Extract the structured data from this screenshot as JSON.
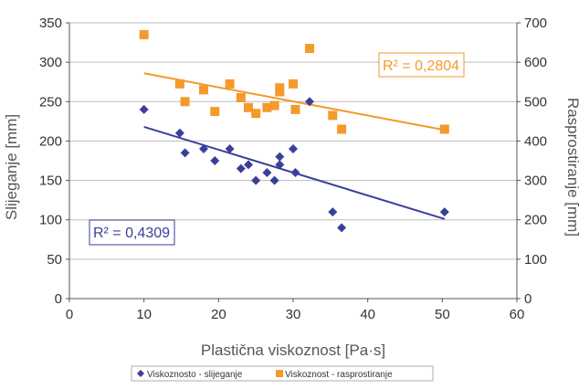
{
  "chart_data": {
    "type": "scatter",
    "xlabel": "Plastična viskoznost [Pa·s]",
    "ylabel": "Slijeganje [mm]",
    "y2label": "Rasprostiranje [mm]",
    "xlim": [
      0,
      60
    ],
    "ylim": [
      0,
      350
    ],
    "y2lim": [
      0,
      700
    ],
    "x_ticks": [
      0,
      10,
      20,
      30,
      40,
      50,
      60
    ],
    "y_ticks": [
      0,
      50,
      100,
      150,
      200,
      250,
      300,
      350
    ],
    "y2_ticks": [
      0,
      100,
      200,
      300,
      400,
      500,
      600,
      700
    ],
    "grid": "horizontal",
    "legend_position": "bottom",
    "series": [
      {
        "name": "Viskoznosto - slijeganje",
        "axis": "left",
        "marker": "diamond",
        "color": "#3a3f9a",
        "points": [
          [
            10,
            240
          ],
          [
            14.8,
            210
          ],
          [
            15.5,
            185
          ],
          [
            18,
            190
          ],
          [
            19.5,
            175
          ],
          [
            21.5,
            190
          ],
          [
            23,
            165
          ],
          [
            24,
            170
          ],
          [
            25,
            150
          ],
          [
            26.5,
            160
          ],
          [
            27.5,
            150
          ],
          [
            28.2,
            170
          ],
          [
            28.2,
            180
          ],
          [
            30,
            190
          ],
          [
            30.3,
            160
          ],
          [
            32.2,
            250
          ],
          [
            35.3,
            110
          ],
          [
            36.5,
            90
          ],
          [
            50.3,
            110
          ]
        ],
        "trendline": {
          "x": [
            10,
            50.3
          ],
          "y": [
            218,
            101
          ],
          "color": "#3a3f9a",
          "label": "R² = 0,4309",
          "label_color": "#3a3f9a"
        }
      },
      {
        "name": "Viskoznost - rasprostiranje",
        "axis": "right",
        "marker": "square",
        "color": "#f39a2b",
        "points": [
          [
            10,
            670
          ],
          [
            14.8,
            545
          ],
          [
            15.5,
            500
          ],
          [
            18,
            530
          ],
          [
            19.5,
            475
          ],
          [
            21.5,
            545
          ],
          [
            23,
            510
          ],
          [
            24,
            485
          ],
          [
            25,
            470
          ],
          [
            26.5,
            485
          ],
          [
            27.5,
            490
          ],
          [
            28.2,
            525
          ],
          [
            28.2,
            535
          ],
          [
            30,
            545
          ],
          [
            30.3,
            480
          ],
          [
            32.2,
            635
          ],
          [
            35.3,
            465
          ],
          [
            36.5,
            430
          ],
          [
            50.3,
            430
          ]
        ],
        "trendline": {
          "x": [
            10,
            50.3
          ],
          "y": [
            572,
            428
          ],
          "color": "#f39a2b",
          "label": "R² = 0,2804",
          "label_color": "#f39a2b"
        }
      }
    ]
  },
  "legend": {
    "item1": "Viskoznosto - slijeganje",
    "item2": "Viskoznost - rasprostiranje"
  },
  "labels": {
    "r2_blue": "R² = 0,4309",
    "r2_orange": "R² = 0,2804"
  }
}
